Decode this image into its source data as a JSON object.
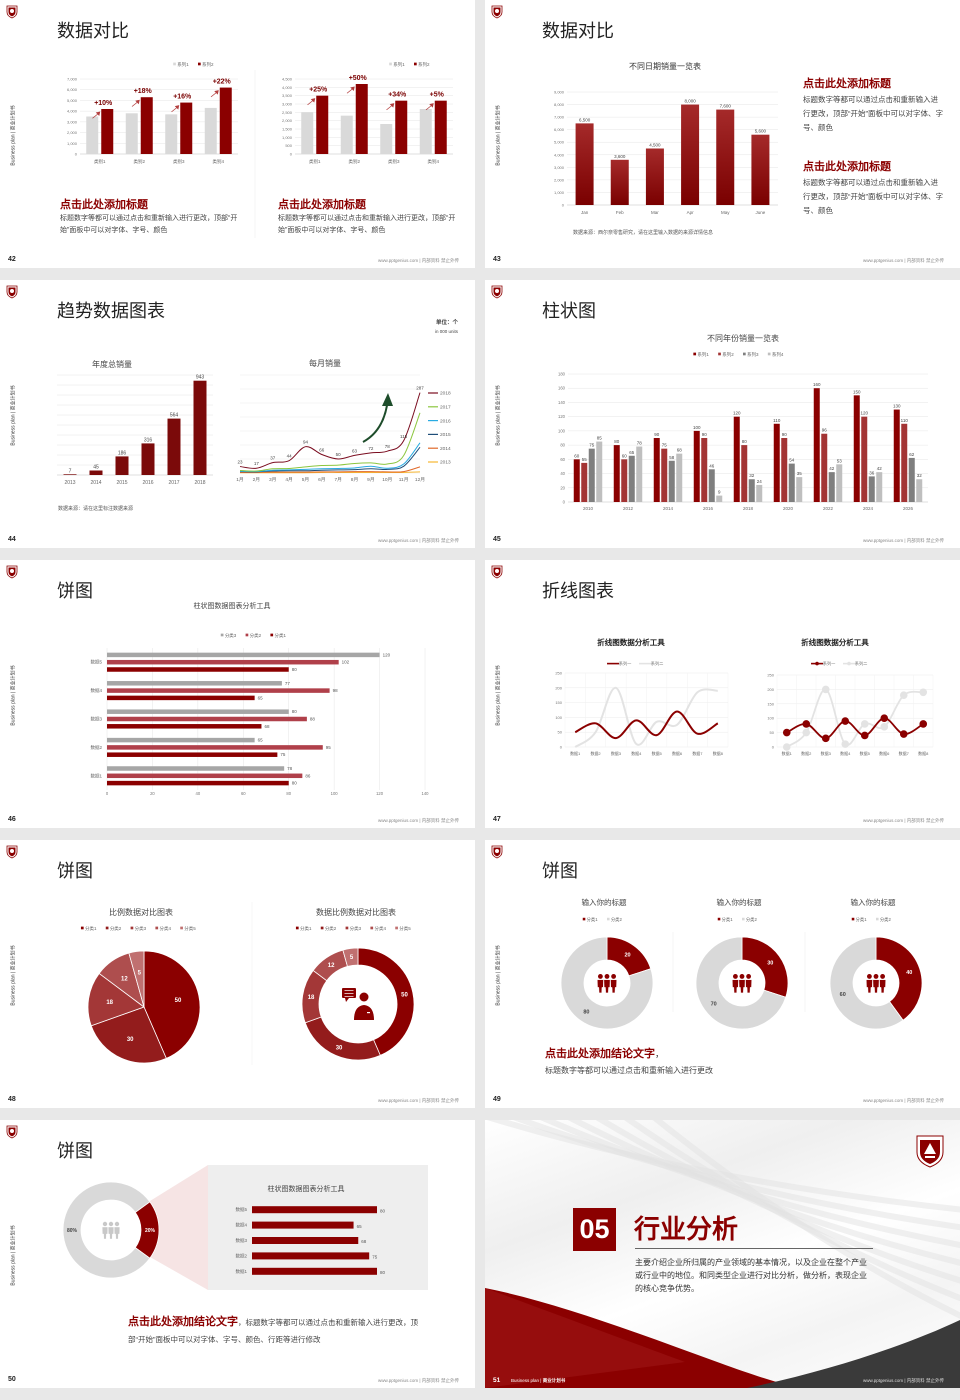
{
  "common": {
    "side_label": "Business plan | 商业计划书",
    "footer": "www.pptgenius.com | 内部资料 禁止外传",
    "accent": "#8b0000",
    "gray": "#d9d9d9",
    "logo_icon": "school-crest-icon"
  },
  "s42": {
    "page": "42",
    "title": "数据对比",
    "blocks": [
      {
        "heading": "点击此处添加标题",
        "body": "标题数字等都可以通过点击和重新输入进行更改，顶部“开始”面板中可以对字体、字号、颜色"
      },
      {
        "heading": "点击此处添加标题",
        "body": "标题数字等都可以通过点击和重新输入进行更改，顶部“开始”面板中可以对字体、字号、颜色"
      }
    ]
  },
  "s43": {
    "page": "43",
    "title": "数据对比",
    "source": "数据来源：西尔奈零售研究，请在这里输入数据的来源详情信息",
    "blocks": [
      {
        "heading": "点击此处添加标题",
        "body": "标题数字等都可以通过点击和重新输入进行更改，顶部“开始”面板中可以对字体、字号、颜色"
      },
      {
        "heading": "点击此处添加标题",
        "body": "标题数字等都可以通过点击和重新输入进行更改，顶部“开始”面板中可以对字体、字号、颜色"
      }
    ]
  },
  "s44": {
    "page": "44",
    "title": "趋势数据图表",
    "unit": "单位：个",
    "unit_en": "in 000 units",
    "source": "数据来源：请在这里标注数据来源"
  },
  "s45": {
    "page": "45",
    "title": "柱状图"
  },
  "s46": {
    "page": "46",
    "title": "饼图"
  },
  "s47": {
    "page": "47",
    "title": "折线图表"
  },
  "s48": {
    "page": "48",
    "title": "饼图"
  },
  "s49": {
    "page": "49",
    "title": "饼图",
    "conclusion": "点击此处添加结论文字",
    "comma": "，",
    "body": "标题数字等都可以通过点击和重新输入进行更改"
  },
  "s50": {
    "page": "50",
    "title": "饼图",
    "conclusion": "点击此处添加结论文字",
    "body": "，标题数字等都可以通过点击和重新输入进行更改，顶部“开始”面板中可以对字体、字号、颜色、行距等进行修改"
  },
  "s51": {
    "page": "51",
    "number": "05",
    "title": "行业分析",
    "body": "主要介绍企业所归属的产业领域的基本情况，以及企业在整个产业或行业中的地位。和同类型企业进行对比分析，做分析，表现企业的核心竞争优势。",
    "footer_left": "Business plan |",
    "footer_left_bold": "商业计划书"
  },
  "chart_data": [
    {
      "type": "bar",
      "categories": [
        "类别1",
        "类别2",
        "类别3",
        "类别4"
      ],
      "series": [
        {
          "name": "系列1",
          "values": [
            3500,
            3800,
            3700,
            4300
          ]
        },
        {
          "name": "系列2",
          "values": [
            4200,
            5300,
            4800,
            6200
          ]
        }
      ],
      "annotations": [
        "+10%",
        "+18%",
        "+16%",
        "+22%"
      ],
      "ylim": [
        0,
        7000
      ],
      "ystep": 1000,
      "legend": "top-right",
      "colors": [
        "#d9d9d9",
        "#8b0000"
      ]
    },
    {
      "type": "bar",
      "categories": [
        "类别1",
        "类别2",
        "类别3",
        "类别4"
      ],
      "series": [
        {
          "name": "系列1",
          "values": [
            2500,
            2300,
            1800,
            2700
          ]
        },
        {
          "name": "系列2",
          "values": [
            3500,
            4200,
            3200,
            3200
          ]
        }
      ],
      "annotations": [
        "+25%",
        "+50%",
        "+34%",
        "+5%"
      ],
      "ylim": [
        0,
        4500
      ],
      "ystep": 500,
      "legend": "top-right",
      "colors": [
        "#d9d9d9",
        "#8b0000"
      ]
    },
    {
      "type": "bar",
      "title": "不同日期销量一览表",
      "categories": [
        "Jan",
        "Feb",
        "Mar",
        "Apr",
        "May",
        "June"
      ],
      "values": [
        6500,
        3600,
        4500,
        8000,
        7600,
        5600
      ],
      "ylim": [
        0,
        9000
      ],
      "ystep": 1000,
      "colors": [
        "#8b0000"
      ]
    },
    {
      "type": "bar",
      "title": "年度总销量",
      "categories": [
        "2013",
        "2014",
        "2015",
        "2016",
        "2017",
        "2018"
      ],
      "values": [
        7,
        45,
        186,
        316,
        564,
        943
      ],
      "ylim": [
        0,
        1000
      ],
      "colors": [
        "#7b0a0a"
      ]
    },
    {
      "type": "line",
      "title": "每月销量",
      "categories": [
        "1月",
        "2月",
        "3月",
        "4月",
        "5月",
        "6月",
        "7月",
        "8月",
        "9月",
        "10月",
        "11月",
        "12月"
      ],
      "ylim": [
        0,
        350
      ],
      "legend": "right",
      "series": [
        {
          "name": "2018",
          "color": "#7a0c1f",
          "labels": true,
          "values": [
            23,
            17,
            37,
            44,
            94,
            66,
            50,
            63,
            72,
            78,
            115,
            287
          ]
        },
        {
          "name": "2017",
          "color": "#8cc63f",
          "values": [
            9,
            7,
            15,
            16,
            22,
            27,
            28,
            34,
            36,
            32,
            62,
            215
          ]
        },
        {
          "name": "2016",
          "color": "#29abe2",
          "values": [
            6,
            5,
            10,
            11,
            13,
            15,
            16,
            18,
            24,
            17,
            32,
            108
          ]
        },
        {
          "name": "2015",
          "color": "#1f4e79",
          "values": [
            5,
            4,
            7,
            8,
            8,
            10,
            11,
            12,
            15,
            13,
            24,
            92
          ]
        },
        {
          "name": "2014",
          "color": "#e0692a",
          "values": [
            2,
            2,
            3,
            3,
            3,
            4,
            4,
            5,
            5,
            4,
            5,
            22
          ]
        },
        {
          "name": "2013",
          "color": "#f7b733",
          "values": [
            1,
            1,
            1,
            1,
            1,
            2,
            2,
            2,
            2,
            2,
            2,
            4
          ]
        }
      ]
    },
    {
      "type": "bar",
      "title": "不同年份销量一览表",
      "categories": [
        "2010",
        "2012",
        "2014",
        "2016",
        "2018",
        "2020",
        "2022",
        "2024",
        "2026"
      ],
      "ylim": [
        0,
        180
      ],
      "ystep": 20,
      "legend": "top",
      "series": [
        {
          "name": "系列1",
          "values": [
            60,
            80,
            90,
            100,
            120,
            110,
            160,
            150,
            130
          ]
        },
        {
          "name": "系列2",
          "values": [
            55,
            60,
            75,
            90,
            80,
            90,
            96,
            120,
            110
          ]
        },
        {
          "name": "系列3",
          "values": [
            75,
            65,
            58,
            46,
            32,
            54,
            42,
            36,
            62
          ]
        },
        {
          "name": "系列4",
          "values": [
            85,
            78,
            68,
            9,
            24,
            35,
            53,
            42,
            32
          ]
        }
      ],
      "colors": [
        "#8b0000",
        "#a33434",
        "#7f7f7f",
        "#bfbfbf"
      ]
    },
    {
      "type": "bar",
      "orientation": "horizontal",
      "title": "柱状图数据图表分析工具",
      "categories": [
        "数据5",
        "数据4",
        "数据3",
        "数据2",
        "数据1"
      ],
      "xlim": [
        0,
        140
      ],
      "xstep": 20,
      "legend": "top",
      "series": [
        {
          "name": "分类3",
          "values": [
            120,
            77,
            80,
            65,
            78
          ]
        },
        {
          "name": "分类2",
          "values": [
            102,
            98,
            88,
            95,
            86
          ]
        },
        {
          "name": "分类1",
          "values": [
            80,
            65,
            68,
            75,
            80
          ]
        }
      ],
      "colors": [
        "#a6a6a6",
        "#b0404a",
        "#8b0000"
      ]
    },
    {
      "type": "line",
      "title": "折线图数据分析工具",
      "categories": [
        "数据1",
        "数据2",
        "数据3",
        "数据4",
        "数据5",
        "数据6",
        "数据7",
        "数据8"
      ],
      "ylim": [
        0,
        250
      ],
      "ystep": 50,
      "legend": "top",
      "series": [
        {
          "name": "系列一",
          "color": "#8b0000",
          "values": [
            50,
            80,
            30,
            90,
            40,
            120,
            45,
            80
          ]
        },
        {
          "name": "系列二",
          "color": "#e3e3e3",
          "values": [
            0,
            50,
            200,
            10,
            85,
            75,
            185,
            190
          ]
        }
      ]
    },
    {
      "type": "line",
      "title": "折线图数据分析工具",
      "categories": [
        "数据1",
        "数据2",
        "数据3",
        "数据4",
        "数据5",
        "数据6",
        "数据7",
        "数据8"
      ],
      "ylim": [
        0,
        250
      ],
      "ystep": 50,
      "legend": "top",
      "markers": true,
      "series": [
        {
          "name": "系列一",
          "color": "#8b0000",
          "values": [
            50,
            80,
            30,
            90,
            40,
            100,
            45,
            80
          ]
        },
        {
          "name": "系列二",
          "color": "#e3e3e3",
          "values": [
            0,
            50,
            200,
            10,
            80,
            70,
            180,
            190
          ]
        }
      ]
    },
    {
      "type": "pie",
      "title": "比例数据对比图表",
      "categories": [
        "分类1",
        "分类2",
        "分类3",
        "分类4",
        "分类5"
      ],
      "values": [
        50,
        30,
        18,
        12,
        5
      ],
      "colors": [
        "#8b0000",
        "#931c1c",
        "#a33737",
        "#ae4e4e",
        "#c07070"
      ],
      "legend": "top"
    },
    {
      "type": "pie",
      "donut": true,
      "title": "数据比例数据对比图表",
      "categories": [
        "分类1",
        "分类2",
        "分类3",
        "分类4",
        "分类5"
      ],
      "values": [
        50,
        30,
        18,
        12,
        5
      ],
      "colors": [
        "#8b0000",
        "#931c1c",
        "#a33737",
        "#ae4e4e",
        "#c07070"
      ],
      "legend": "top"
    },
    {
      "type": "pie",
      "donut": true,
      "title": "输入你的标题",
      "categories": [
        "分类1",
        "分类2"
      ],
      "values": [
        20,
        80
      ],
      "colors": [
        "#8b0000",
        "#d9d9d9"
      ],
      "legend": "top"
    },
    {
      "type": "pie",
      "donut": true,
      "title": "输入你的标题",
      "categories": [
        "分类1",
        "分类2"
      ],
      "values": [
        30,
        70
      ],
      "colors": [
        "#8b0000",
        "#d9d9d9"
      ],
      "legend": "top"
    },
    {
      "type": "pie",
      "donut": true,
      "title": "输入你的标题",
      "categories": [
        "分类1",
        "分类2"
      ],
      "values": [
        40,
        60
      ],
      "colors": [
        "#8b0000",
        "#d9d9d9"
      ],
      "legend": "top"
    },
    {
      "type": "pie",
      "donut": true,
      "values": [
        20,
        80
      ],
      "labels": [
        "20%",
        "80%"
      ],
      "colors": [
        "#8b0000",
        "#d9d9d9"
      ]
    },
    {
      "type": "bar",
      "orientation": "horizontal",
      "title": "柱状图数据图表分析工具",
      "categories": [
        "数据5",
        "数据4",
        "数据3",
        "数据2",
        "数据1"
      ],
      "values": [
        80,
        65,
        68,
        75,
        80
      ],
      "colors": [
        "#8b0000"
      ]
    }
  ]
}
